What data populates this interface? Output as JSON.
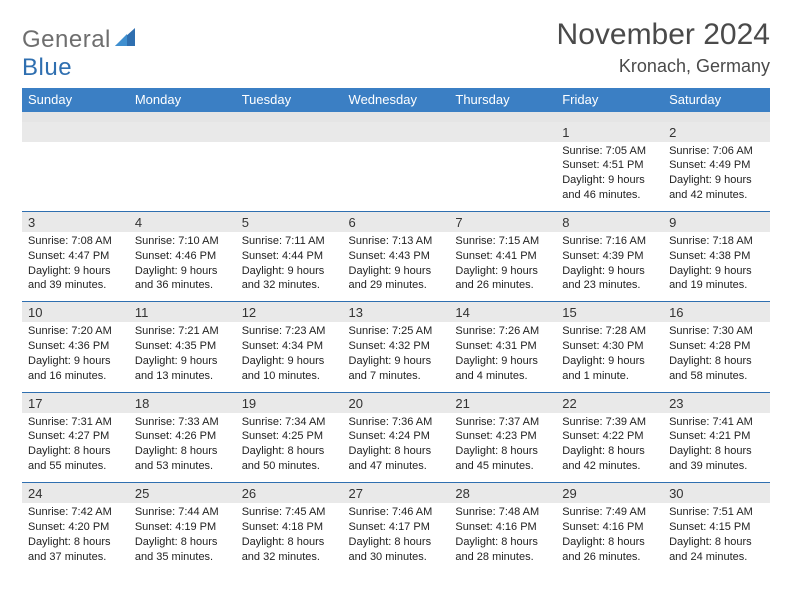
{
  "logo": {
    "word1": "General",
    "word2": "Blue"
  },
  "title": {
    "month": "November 2024",
    "location": "Kronach, Germany"
  },
  "colors": {
    "header_bg": "#3b7fc4",
    "header_text": "#ffffff",
    "num_bg": "#e9e9e9",
    "row_border": "#2f6fb0",
    "gap_bg": "#e5e5e5",
    "logo_gray": "#6e6e6e",
    "logo_blue": "#2f6fb0",
    "title_color": "#4a4a4a"
  },
  "typography": {
    "title_fontsize": 30,
    "location_fontsize": 18,
    "dayhead_fontsize": 13,
    "daynum_fontsize": 13,
    "cell_fontsize": 11
  },
  "day_names": [
    "Sunday",
    "Monday",
    "Tuesday",
    "Wednesday",
    "Thursday",
    "Friday",
    "Saturday"
  ],
  "weeks": [
    [
      {
        "n": "",
        "sr": "",
        "ss": "",
        "dl": ""
      },
      {
        "n": "",
        "sr": "",
        "ss": "",
        "dl": ""
      },
      {
        "n": "",
        "sr": "",
        "ss": "",
        "dl": ""
      },
      {
        "n": "",
        "sr": "",
        "ss": "",
        "dl": ""
      },
      {
        "n": "",
        "sr": "",
        "ss": "",
        "dl": ""
      },
      {
        "n": "1",
        "sr": "Sunrise: 7:05 AM",
        "ss": "Sunset: 4:51 PM",
        "dl": "Daylight: 9 hours and 46 minutes."
      },
      {
        "n": "2",
        "sr": "Sunrise: 7:06 AM",
        "ss": "Sunset: 4:49 PM",
        "dl": "Daylight: 9 hours and 42 minutes."
      }
    ],
    [
      {
        "n": "3",
        "sr": "Sunrise: 7:08 AM",
        "ss": "Sunset: 4:47 PM",
        "dl": "Daylight: 9 hours and 39 minutes."
      },
      {
        "n": "4",
        "sr": "Sunrise: 7:10 AM",
        "ss": "Sunset: 4:46 PM",
        "dl": "Daylight: 9 hours and 36 minutes."
      },
      {
        "n": "5",
        "sr": "Sunrise: 7:11 AM",
        "ss": "Sunset: 4:44 PM",
        "dl": "Daylight: 9 hours and 32 minutes."
      },
      {
        "n": "6",
        "sr": "Sunrise: 7:13 AM",
        "ss": "Sunset: 4:43 PM",
        "dl": "Daylight: 9 hours and 29 minutes."
      },
      {
        "n": "7",
        "sr": "Sunrise: 7:15 AM",
        "ss": "Sunset: 4:41 PM",
        "dl": "Daylight: 9 hours and 26 minutes."
      },
      {
        "n": "8",
        "sr": "Sunrise: 7:16 AM",
        "ss": "Sunset: 4:39 PM",
        "dl": "Daylight: 9 hours and 23 minutes."
      },
      {
        "n": "9",
        "sr": "Sunrise: 7:18 AM",
        "ss": "Sunset: 4:38 PM",
        "dl": "Daylight: 9 hours and 19 minutes."
      }
    ],
    [
      {
        "n": "10",
        "sr": "Sunrise: 7:20 AM",
        "ss": "Sunset: 4:36 PM",
        "dl": "Daylight: 9 hours and 16 minutes."
      },
      {
        "n": "11",
        "sr": "Sunrise: 7:21 AM",
        "ss": "Sunset: 4:35 PM",
        "dl": "Daylight: 9 hours and 13 minutes."
      },
      {
        "n": "12",
        "sr": "Sunrise: 7:23 AM",
        "ss": "Sunset: 4:34 PM",
        "dl": "Daylight: 9 hours and 10 minutes."
      },
      {
        "n": "13",
        "sr": "Sunrise: 7:25 AM",
        "ss": "Sunset: 4:32 PM",
        "dl": "Daylight: 9 hours and 7 minutes."
      },
      {
        "n": "14",
        "sr": "Sunrise: 7:26 AM",
        "ss": "Sunset: 4:31 PM",
        "dl": "Daylight: 9 hours and 4 minutes."
      },
      {
        "n": "15",
        "sr": "Sunrise: 7:28 AM",
        "ss": "Sunset: 4:30 PM",
        "dl": "Daylight: 9 hours and 1 minute."
      },
      {
        "n": "16",
        "sr": "Sunrise: 7:30 AM",
        "ss": "Sunset: 4:28 PM",
        "dl": "Daylight: 8 hours and 58 minutes."
      }
    ],
    [
      {
        "n": "17",
        "sr": "Sunrise: 7:31 AM",
        "ss": "Sunset: 4:27 PM",
        "dl": "Daylight: 8 hours and 55 minutes."
      },
      {
        "n": "18",
        "sr": "Sunrise: 7:33 AM",
        "ss": "Sunset: 4:26 PM",
        "dl": "Daylight: 8 hours and 53 minutes."
      },
      {
        "n": "19",
        "sr": "Sunrise: 7:34 AM",
        "ss": "Sunset: 4:25 PM",
        "dl": "Daylight: 8 hours and 50 minutes."
      },
      {
        "n": "20",
        "sr": "Sunrise: 7:36 AM",
        "ss": "Sunset: 4:24 PM",
        "dl": "Daylight: 8 hours and 47 minutes."
      },
      {
        "n": "21",
        "sr": "Sunrise: 7:37 AM",
        "ss": "Sunset: 4:23 PM",
        "dl": "Daylight: 8 hours and 45 minutes."
      },
      {
        "n": "22",
        "sr": "Sunrise: 7:39 AM",
        "ss": "Sunset: 4:22 PM",
        "dl": "Daylight: 8 hours and 42 minutes."
      },
      {
        "n": "23",
        "sr": "Sunrise: 7:41 AM",
        "ss": "Sunset: 4:21 PM",
        "dl": "Daylight: 8 hours and 39 minutes."
      }
    ],
    [
      {
        "n": "24",
        "sr": "Sunrise: 7:42 AM",
        "ss": "Sunset: 4:20 PM",
        "dl": "Daylight: 8 hours and 37 minutes."
      },
      {
        "n": "25",
        "sr": "Sunrise: 7:44 AM",
        "ss": "Sunset: 4:19 PM",
        "dl": "Daylight: 8 hours and 35 minutes."
      },
      {
        "n": "26",
        "sr": "Sunrise: 7:45 AM",
        "ss": "Sunset: 4:18 PM",
        "dl": "Daylight: 8 hours and 32 minutes."
      },
      {
        "n": "27",
        "sr": "Sunrise: 7:46 AM",
        "ss": "Sunset: 4:17 PM",
        "dl": "Daylight: 8 hours and 30 minutes."
      },
      {
        "n": "28",
        "sr": "Sunrise: 7:48 AM",
        "ss": "Sunset: 4:16 PM",
        "dl": "Daylight: 8 hours and 28 minutes."
      },
      {
        "n": "29",
        "sr": "Sunrise: 7:49 AM",
        "ss": "Sunset: 4:16 PM",
        "dl": "Daylight: 8 hours and 26 minutes."
      },
      {
        "n": "30",
        "sr": "Sunrise: 7:51 AM",
        "ss": "Sunset: 4:15 PM",
        "dl": "Daylight: 8 hours and 24 minutes."
      }
    ]
  ]
}
